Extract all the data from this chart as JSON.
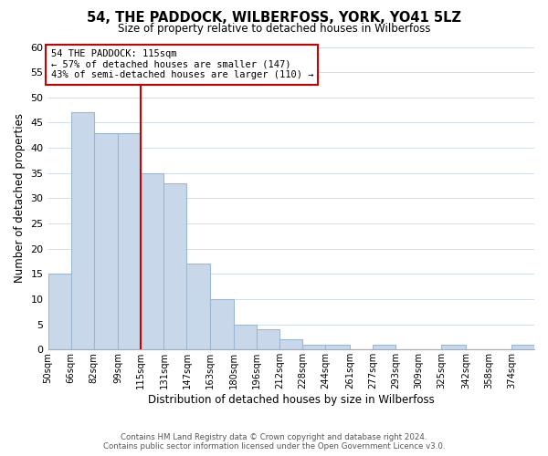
{
  "title": "54, THE PADDOCK, WILBERFOSS, YORK, YO41 5LZ",
  "subtitle": "Size of property relative to detached houses in Wilberfoss",
  "xlabel": "Distribution of detached houses by size in Wilberfoss",
  "ylabel": "Number of detached properties",
  "bin_edges": [
    50,
    66,
    82,
    99,
    115,
    131,
    147,
    163,
    180,
    196,
    212,
    228,
    244,
    261,
    277,
    293,
    309,
    325,
    342,
    358,
    374
  ],
  "bin_labels": [
    "50sqm",
    "66sqm",
    "82sqm",
    "99sqm",
    "115sqm",
    "131sqm",
    "147sqm",
    "163sqm",
    "180sqm",
    "196sqm",
    "212sqm",
    "228sqm",
    "244sqm",
    "261sqm",
    "277sqm",
    "293sqm",
    "309sqm",
    "325sqm",
    "342sqm",
    "358sqm",
    "374sqm"
  ],
  "counts": [
    15,
    47,
    43,
    43,
    35,
    33,
    17,
    10,
    5,
    4,
    2,
    1,
    1,
    0,
    1,
    0,
    0,
    1,
    0,
    0,
    1
  ],
  "bar_color": "#c8d8ea",
  "bar_edge_color": "#9ab8d0",
  "reference_line_x": 115,
  "reference_line_color": "#cc0000",
  "ylim": [
    0,
    60
  ],
  "yticks": [
    0,
    5,
    10,
    15,
    20,
    25,
    30,
    35,
    40,
    45,
    50,
    55,
    60
  ],
  "annotation_text_line1": "54 THE PADDOCK: 115sqm",
  "annotation_text_line2": "← 57% of detached houses are smaller (147)",
  "annotation_text_line3": "43% of semi-detached houses are larger (110) →",
  "footer_line1": "Contains HM Land Registry data © Crown copyright and database right 2024.",
  "footer_line2": "Contains public sector information licensed under the Open Government Licence v3.0.",
  "background_color": "#ffffff",
  "grid_color": "#d0dce8"
}
